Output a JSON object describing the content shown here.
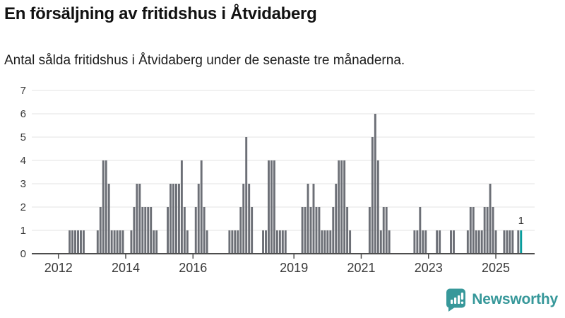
{
  "header": {
    "title": "En försäljning av fritidshus i Åtvidaberg",
    "subtitle": "Antal sålda fritidshus i Åtvidaberg under de senaste tre månaderna."
  },
  "footer": {
    "brand": "Newsworthy"
  },
  "chart_data": {
    "type": "bar",
    "title": "En försäljning av fritidshus i Åtvidaberg",
    "subtitle": "Antal sålda fritidshus i Åtvidaberg under de senaste tre månaderna.",
    "ylim": [
      0,
      7
    ],
    "yticks": [
      0,
      1,
      2,
      3,
      4,
      5,
      6,
      7
    ],
    "x_start": "2011-04",
    "x_end": "2026-03",
    "year_tick_labels": [
      "2012",
      "2014",
      "2016",
      "2019",
      "2021",
      "2023",
      "2025"
    ],
    "grid": "horizontal",
    "bar_color": "#6c6f76",
    "highlight_color": "#089c9c",
    "axis_color": "#4d4d4d",
    "gridline_color": "#e3e3e3",
    "tick_label_color": "#3a3a3a",
    "highlight_month": "2025-10",
    "highlight_label": "1",
    "points": [
      [
        "2012-05",
        1
      ],
      [
        "2012-06",
        1
      ],
      [
        "2012-07",
        1
      ],
      [
        "2012-08",
        1
      ],
      [
        "2012-09",
        1
      ],
      [
        "2012-10",
        1
      ],
      [
        "2013-03",
        1
      ],
      [
        "2013-04",
        2
      ],
      [
        "2013-05",
        4
      ],
      [
        "2013-06",
        4
      ],
      [
        "2013-07",
        3
      ],
      [
        "2013-08",
        1
      ],
      [
        "2013-09",
        1
      ],
      [
        "2013-10",
        1
      ],
      [
        "2013-11",
        1
      ],
      [
        "2013-12",
        1
      ],
      [
        "2014-03",
        1
      ],
      [
        "2014-04",
        2
      ],
      [
        "2014-05",
        3
      ],
      [
        "2014-06",
        3
      ],
      [
        "2014-07",
        2
      ],
      [
        "2014-08",
        2
      ],
      [
        "2014-09",
        2
      ],
      [
        "2014-10",
        2
      ],
      [
        "2014-11",
        1
      ],
      [
        "2014-12",
        1
      ],
      [
        "2015-04",
        2
      ],
      [
        "2015-05",
        3
      ],
      [
        "2015-06",
        3
      ],
      [
        "2015-07",
        3
      ],
      [
        "2015-08",
        3
      ],
      [
        "2015-09",
        4
      ],
      [
        "2015-10",
        2
      ],
      [
        "2015-11",
        1
      ],
      [
        "2016-02",
        2
      ],
      [
        "2016-03",
        3
      ],
      [
        "2016-04",
        4
      ],
      [
        "2016-05",
        2
      ],
      [
        "2016-06",
        1
      ],
      [
        "2017-02",
        1
      ],
      [
        "2017-03",
        1
      ],
      [
        "2017-04",
        1
      ],
      [
        "2017-05",
        1
      ],
      [
        "2017-06",
        2
      ],
      [
        "2017-07",
        3
      ],
      [
        "2017-08",
        5
      ],
      [
        "2017-09",
        3
      ],
      [
        "2017-10",
        2
      ],
      [
        "2018-02",
        1
      ],
      [
        "2018-03",
        1
      ],
      [
        "2018-04",
        4
      ],
      [
        "2018-05",
        4
      ],
      [
        "2018-06",
        4
      ],
      [
        "2018-07",
        1
      ],
      [
        "2018-08",
        1
      ],
      [
        "2018-09",
        1
      ],
      [
        "2018-10",
        1
      ],
      [
        "2019-04",
        2
      ],
      [
        "2019-05",
        2
      ],
      [
        "2019-06",
        3
      ],
      [
        "2019-07",
        2
      ],
      [
        "2019-08",
        3
      ],
      [
        "2019-09",
        2
      ],
      [
        "2019-10",
        2
      ],
      [
        "2019-11",
        1
      ],
      [
        "2019-12",
        1
      ],
      [
        "2020-01",
        1
      ],
      [
        "2020-02",
        1
      ],
      [
        "2020-03",
        2
      ],
      [
        "2020-04",
        3
      ],
      [
        "2020-05",
        4
      ],
      [
        "2020-06",
        4
      ],
      [
        "2020-07",
        4
      ],
      [
        "2020-08",
        2
      ],
      [
        "2020-09",
        1
      ],
      [
        "2021-04",
        2
      ],
      [
        "2021-05",
        5
      ],
      [
        "2021-06",
        6
      ],
      [
        "2021-07",
        4
      ],
      [
        "2021-08",
        1
      ],
      [
        "2021-09",
        2
      ],
      [
        "2021-10",
        2
      ],
      [
        "2021-11",
        1
      ],
      [
        "2022-08",
        1
      ],
      [
        "2022-09",
        1
      ],
      [
        "2022-10",
        2
      ],
      [
        "2022-11",
        1
      ],
      [
        "2022-12",
        1
      ],
      [
        "2023-04",
        1
      ],
      [
        "2023-05",
        1
      ],
      [
        "2023-09",
        1
      ],
      [
        "2023-10",
        1
      ],
      [
        "2024-03",
        1
      ],
      [
        "2024-04",
        2
      ],
      [
        "2024-05",
        2
      ],
      [
        "2024-06",
        1
      ],
      [
        "2024-07",
        1
      ],
      [
        "2024-08",
        1
      ],
      [
        "2024-09",
        2
      ],
      [
        "2024-10",
        2
      ],
      [
        "2024-11",
        3
      ],
      [
        "2024-12",
        2
      ],
      [
        "2025-01",
        1
      ],
      [
        "2025-04",
        1
      ],
      [
        "2025-05",
        1
      ],
      [
        "2025-06",
        1
      ],
      [
        "2025-07",
        1
      ],
      [
        "2025-09",
        1
      ],
      [
        "2025-10",
        1
      ]
    ]
  }
}
